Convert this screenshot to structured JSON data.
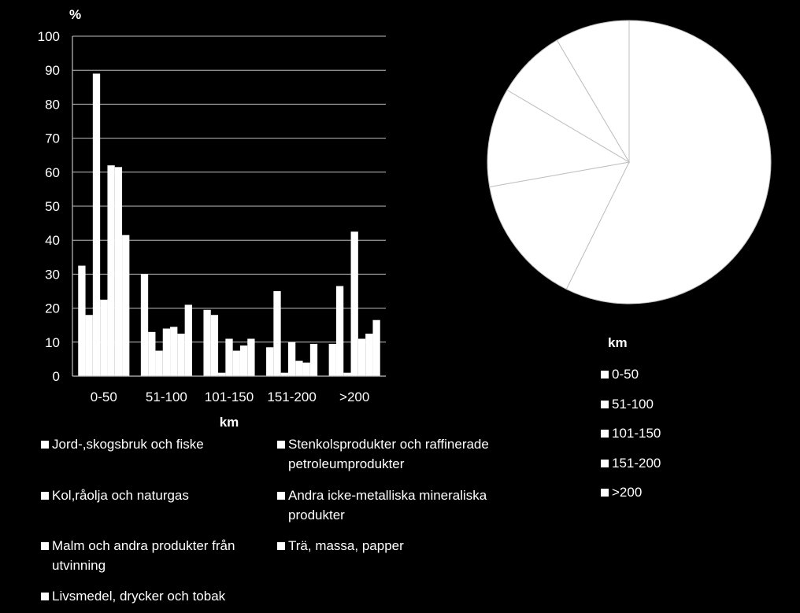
{
  "chart_data": [
    {
      "type": "bar",
      "ylabel": "%",
      "xlabel": "km",
      "ylim": [
        0,
        100
      ],
      "yticks": [
        0,
        10,
        20,
        30,
        40,
        50,
        60,
        70,
        80,
        90,
        100
      ],
      "grid": true,
      "legend_position": "bottom",
      "categories": [
        "0-50",
        "51-100",
        "101-150",
        "151-200",
        ">200"
      ],
      "series": [
        {
          "name": "Jord-,skogsbruk och fiske",
          "values": [
            32.5,
            30,
            19.5,
            8.5,
            9.5
          ]
        },
        {
          "name": "Kol,råolja och naturgas",
          "values": [
            18,
            13,
            18,
            25,
            26.5
          ]
        },
        {
          "name": "Malm och andra produkter från utvinning",
          "values": [
            89,
            7.5,
            1,
            1,
            1
          ]
        },
        {
          "name": "Livsmedel, drycker och tobak",
          "values": [
            22.5,
            14,
            11,
            10,
            42.5
          ]
        },
        {
          "name": "Stenkolsprodukter och raffinerade petroleumprodukter",
          "values": [
            62,
            14.5,
            7.5,
            4.5,
            11
          ]
        },
        {
          "name": "Andra icke-metalliska mineraliska produkter",
          "values": [
            61.5,
            12.5,
            9,
            4,
            12.5
          ]
        },
        {
          "name": "Trä, massa, papper",
          "values": [
            41.5,
            21,
            11,
            9.5,
            16.5
          ]
        }
      ]
    },
    {
      "type": "pie",
      "legend_title": "km",
      "legend_position": "right-bottom",
      "categories": [
        "0-50",
        "51-100",
        "101-150",
        "151-200",
        ">200"
      ],
      "values": [
        57.3,
        14.9,
        11.3,
        8.0,
        8.5
      ]
    }
  ],
  "colors": {
    "background": "#000000",
    "bars": "#ffffff",
    "pie_fill": "#ffffff",
    "pie_borders": "#bfbfbf"
  }
}
